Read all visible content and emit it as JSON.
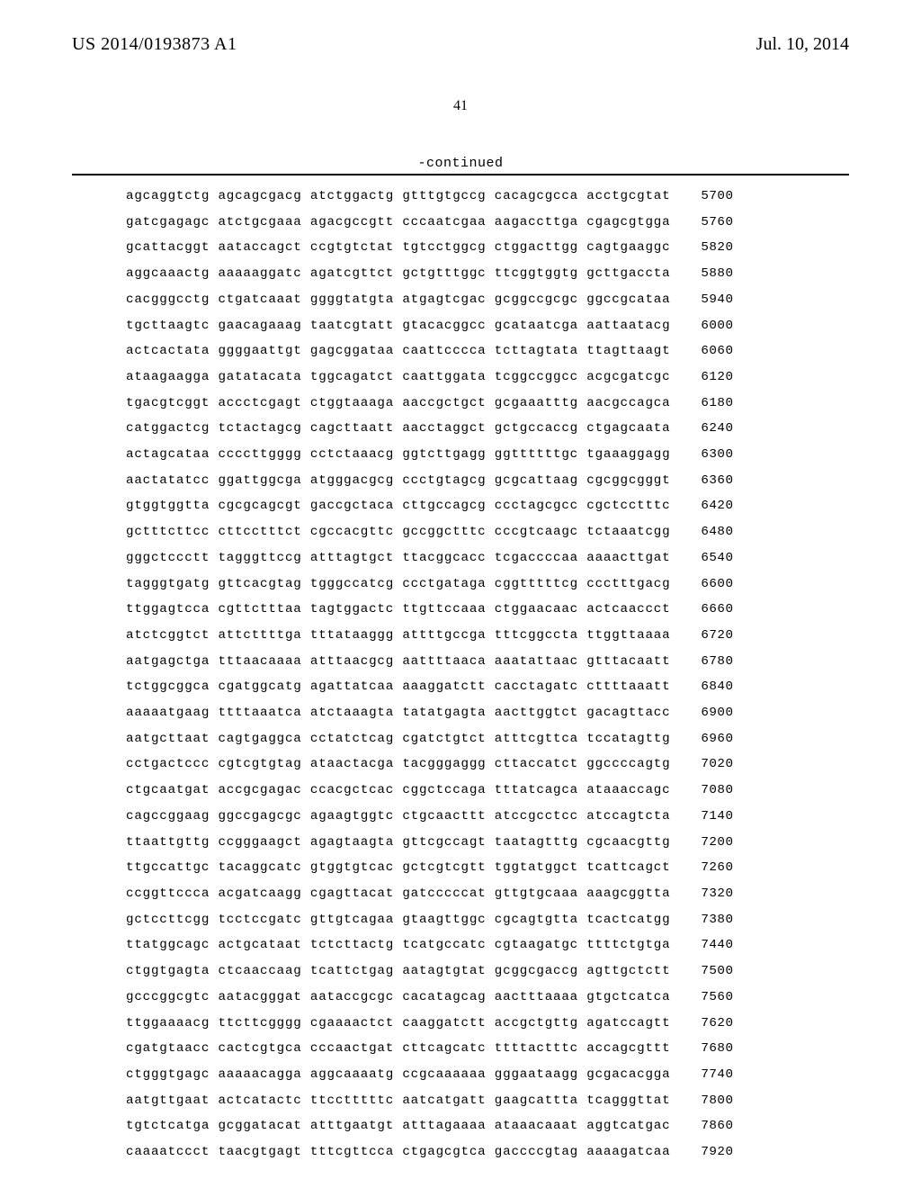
{
  "header": {
    "pub_number": "US 2014/0193873 A1",
    "pub_date": "Jul. 10, 2014"
  },
  "page_number": "41",
  "continued_label": "-continued",
  "sequence": {
    "font_family": "Courier New",
    "font_size": 14.2,
    "row_spacing": 14.5,
    "rows": [
      {
        "groups": [
          "agcaggtctg",
          "agcagcgacg",
          "atctggactg",
          "gtttgtgccg",
          "cacagcgcca",
          "acctgcgtat"
        ],
        "pos": "5700"
      },
      {
        "groups": [
          "gatcgagagc",
          "atctgcgaaa",
          "agacgccgtt",
          "cccaatcgaa",
          "aagaccttga",
          "cgagcgtgga"
        ],
        "pos": "5760"
      },
      {
        "groups": [
          "gcattacggt",
          "aataccagct",
          "ccgtgtctat",
          "tgtcctggcg",
          "ctggacttgg",
          "cagtgaaggc"
        ],
        "pos": "5820"
      },
      {
        "groups": [
          "aggcaaactg",
          "aaaaaggatc",
          "agatcgttct",
          "gctgtttggc",
          "ttcggtggtg",
          "gcttgaccta"
        ],
        "pos": "5880"
      },
      {
        "groups": [
          "cacgggcctg",
          "ctgatcaaat",
          "ggggtatgta",
          "atgagtcgac",
          "gcggccgcgc",
          "ggccgcataa"
        ],
        "pos": "5940"
      },
      {
        "groups": [
          "tgcttaagtc",
          "gaacagaaag",
          "taatcgtatt",
          "gtacacggcc",
          "gcataatcga",
          "aattaatacg"
        ],
        "pos": "6000"
      },
      {
        "groups": [
          "actcactata",
          "ggggaattgt",
          "gagcggataa",
          "caattcccca",
          "tcttagtata",
          "ttagttaagt"
        ],
        "pos": "6060"
      },
      {
        "groups": [
          "ataagaagga",
          "gatatacata",
          "tggcagatct",
          "caattggata",
          "tcggccggcc",
          "acgcgatcgc"
        ],
        "pos": "6120"
      },
      {
        "groups": [
          "tgacgtcggt",
          "accctcgagt",
          "ctggtaaaga",
          "aaccgctgct",
          "gcgaaatttg",
          "aacgccagca"
        ],
        "pos": "6180"
      },
      {
        "groups": [
          "catggactcg",
          "tctactagcg",
          "cagcttaatt",
          "aacctaggct",
          "gctgccaccg",
          "ctgagcaata"
        ],
        "pos": "6240"
      },
      {
        "groups": [
          "actagcataa",
          "ccccttgggg",
          "cctctaaacg",
          "ggtcttgagg",
          "ggttttttgc",
          "tgaaaggagg"
        ],
        "pos": "6300"
      },
      {
        "groups": [
          "aactatatcc",
          "ggattggcga",
          "atgggacgcg",
          "ccctgtagcg",
          "gcgcattaag",
          "cgcggcgggt"
        ],
        "pos": "6360"
      },
      {
        "groups": [
          "gtggtggtta",
          "cgcgcagcgt",
          "gaccgctaca",
          "cttgccagcg",
          "ccctagcgcc",
          "cgctcctttc"
        ],
        "pos": "6420"
      },
      {
        "groups": [
          "gctttcttcc",
          "cttcctttct",
          "cgccacgttc",
          "gccggctttc",
          "cccgtcaagc",
          "tctaaatcgg"
        ],
        "pos": "6480"
      },
      {
        "groups": [
          "gggctccctt",
          "tagggttccg",
          "atttagtgct",
          "ttacggcacc",
          "tcgaccccaa",
          "aaaacttgat"
        ],
        "pos": "6540"
      },
      {
        "groups": [
          "tagggtgatg",
          "gttcacgtag",
          "tgggccatcg",
          "ccctgataga",
          "cggtttttcg",
          "ccctttgacg"
        ],
        "pos": "6600"
      },
      {
        "groups": [
          "ttggagtcca",
          "cgttctttaa",
          "tagtggactc",
          "ttgttccaaa",
          "ctggaacaac",
          "actcaaccct"
        ],
        "pos": "6660"
      },
      {
        "groups": [
          "atctcggtct",
          "attcttttga",
          "tttataaggg",
          "attttgccga",
          "tttcggccta",
          "ttggttaaaa"
        ],
        "pos": "6720"
      },
      {
        "groups": [
          "aatgagctga",
          "tttaacaaaa",
          "atttaacgcg",
          "aattttaaca",
          "aaatattaac",
          "gtttacaatt"
        ],
        "pos": "6780"
      },
      {
        "groups": [
          "tctggcggca",
          "cgatggcatg",
          "agattatcaa",
          "aaaggatctt",
          "cacctagatc",
          "cttttaaatt"
        ],
        "pos": "6840"
      },
      {
        "groups": [
          "aaaaatgaag",
          "ttttaaatca",
          "atctaaagta",
          "tatatgagta",
          "aacttggtct",
          "gacagttacc"
        ],
        "pos": "6900"
      },
      {
        "groups": [
          "aatgcttaat",
          "cagtgaggca",
          "cctatctcag",
          "cgatctgtct",
          "atttcgttca",
          "tccatagttg"
        ],
        "pos": "6960"
      },
      {
        "groups": [
          "cctgactccc",
          "cgtcgtgtag",
          "ataactacga",
          "tacgggaggg",
          "cttaccatct",
          "ggccccagtg"
        ],
        "pos": "7020"
      },
      {
        "groups": [
          "ctgcaatgat",
          "accgcgagac",
          "ccacgctcac",
          "cggctccaga",
          "tttatcagca",
          "ataaaccagc"
        ],
        "pos": "7080"
      },
      {
        "groups": [
          "cagccggaag",
          "ggccgagcgc",
          "agaagtggtc",
          "ctgcaacttt",
          "atccgcctcc",
          "atccagtcta"
        ],
        "pos": "7140"
      },
      {
        "groups": [
          "ttaattgttg",
          "ccgggaagct",
          "agagtaagta",
          "gttcgccagt",
          "taatagtttg",
          "cgcaacgttg"
        ],
        "pos": "7200"
      },
      {
        "groups": [
          "ttgccattgc",
          "tacaggcatc",
          "gtggtgtcac",
          "gctcgtcgtt",
          "tggtatggct",
          "tcattcagct"
        ],
        "pos": "7260"
      },
      {
        "groups": [
          "ccggttccca",
          "acgatcaagg",
          "cgagttacat",
          "gatcccccat",
          "gttgtgcaaa",
          "aaagcggtta"
        ],
        "pos": "7320"
      },
      {
        "groups": [
          "gctccttcgg",
          "tcctccgatc",
          "gttgtcagaa",
          "gtaagttggc",
          "cgcagtgtta",
          "tcactcatgg"
        ],
        "pos": "7380"
      },
      {
        "groups": [
          "ttatggcagc",
          "actgcataat",
          "tctcttactg",
          "tcatgccatc",
          "cgtaagatgc",
          "ttttctgtga"
        ],
        "pos": "7440"
      },
      {
        "groups": [
          "ctggtgagta",
          "ctcaaccaag",
          "tcattctgag",
          "aatagtgtat",
          "gcggcgaccg",
          "agttgctctt"
        ],
        "pos": "7500"
      },
      {
        "groups": [
          "gcccggcgtc",
          "aatacgggat",
          "aataccgcgc",
          "cacatagcag",
          "aactttaaaa",
          "gtgctcatca"
        ],
        "pos": "7560"
      },
      {
        "groups": [
          "ttggaaaacg",
          "ttcttcgggg",
          "cgaaaactct",
          "caaggatctt",
          "accgctgttg",
          "agatccagtt"
        ],
        "pos": "7620"
      },
      {
        "groups": [
          "cgatgtaacc",
          "cactcgtgca",
          "cccaactgat",
          "cttcagcatc",
          "ttttactttc",
          "accagcgttt"
        ],
        "pos": "7680"
      },
      {
        "groups": [
          "ctgggtgagc",
          "aaaaacagga",
          "aggcaaaatg",
          "ccgcaaaaaa",
          "gggaataagg",
          "gcgacacgga"
        ],
        "pos": "7740"
      },
      {
        "groups": [
          "aatgttgaat",
          "actcatactc",
          "ttcctttttc",
          "aatcatgatt",
          "gaagcattta",
          "tcagggttat"
        ],
        "pos": "7800"
      },
      {
        "groups": [
          "tgtctcatga",
          "gcggatacat",
          "atttgaatgt",
          "atttagaaaa",
          "ataaacaaat",
          "aggtcatgac"
        ],
        "pos": "7860"
      },
      {
        "groups": [
          "caaaatccct",
          "taacgtgagt",
          "tttcgttcca",
          "ctgagcgtca",
          "gaccccgtag",
          "aaaagatcaa"
        ],
        "pos": "7920"
      }
    ]
  },
  "colors": {
    "background": "#ffffff",
    "text": "#000000",
    "divider": "#000000"
  }
}
